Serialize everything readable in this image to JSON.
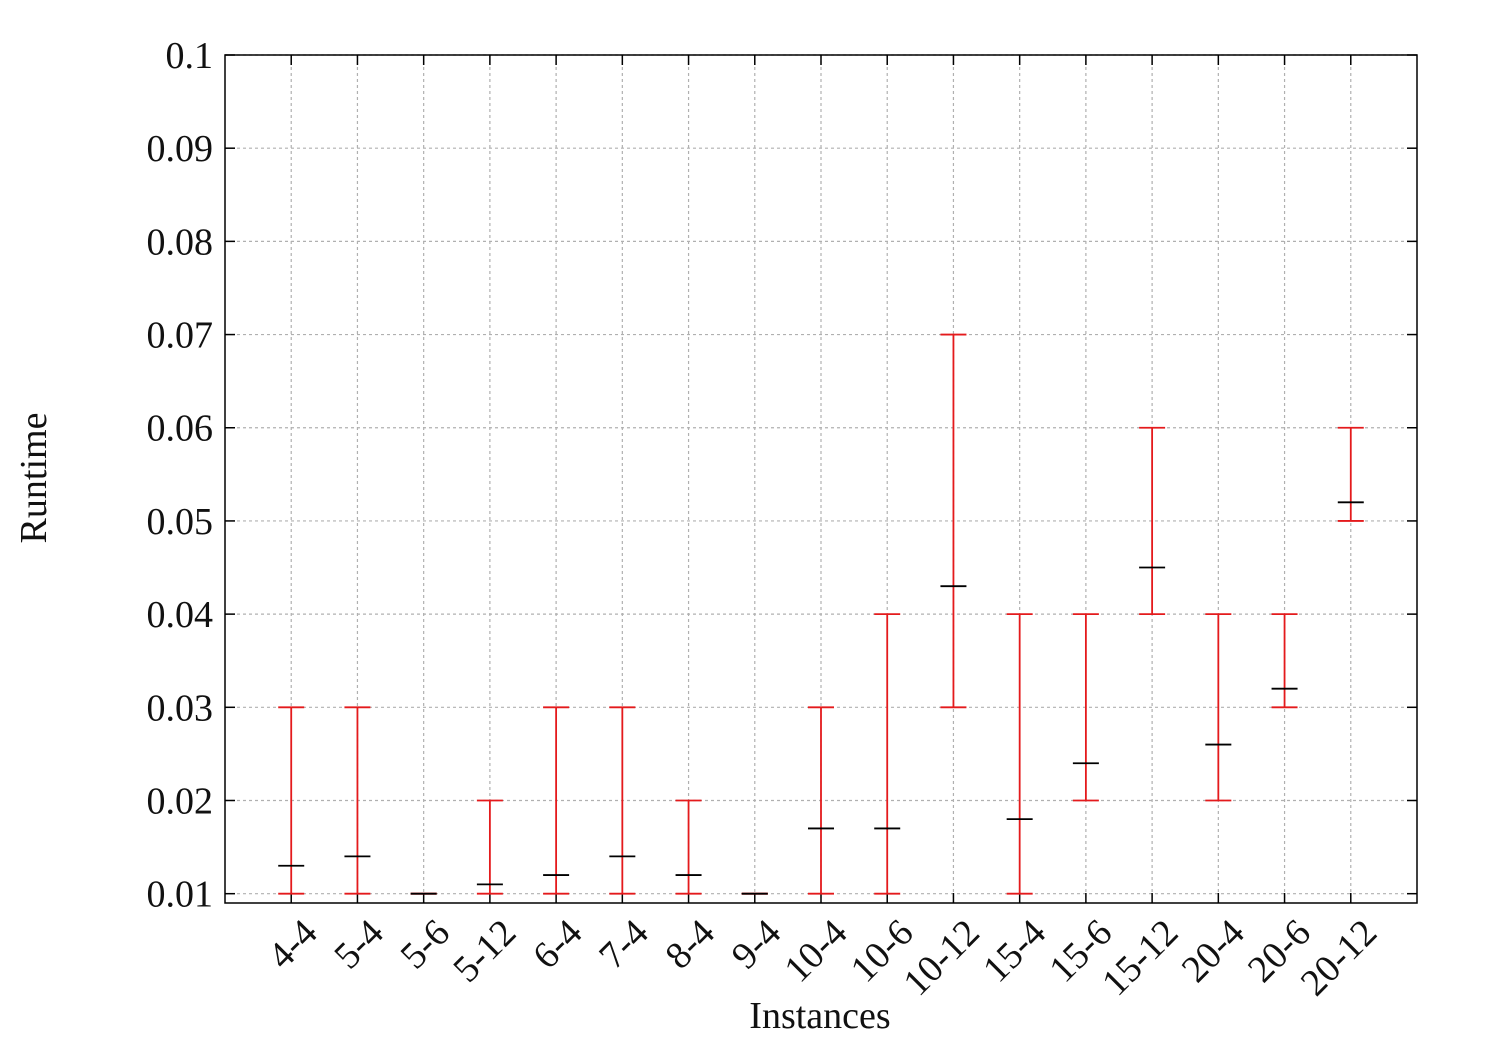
{
  "chart_data": {
    "type": "errorbar",
    "x_label": "Instances",
    "y_label": "Runtime",
    "categories": [
      "4-4",
      "5-4",
      "5-6",
      "5-12",
      "6-4",
      "7-4",
      "8-4",
      "9-4",
      "10-4",
      "10-6",
      "10-12",
      "15-4",
      "15-6",
      "15-12",
      "20-4",
      "20-6",
      "20-12"
    ],
    "values": [
      0.013,
      0.014,
      0.01,
      0.011,
      0.012,
      0.014,
      0.012,
      0.01,
      0.017,
      0.017,
      0.043,
      0.018,
      0.024,
      0.045,
      0.026,
      0.032,
      0.052
    ],
    "low": [
      0.01,
      0.01,
      0.01,
      0.01,
      0.01,
      0.01,
      0.01,
      0.01,
      0.01,
      0.01,
      0.03,
      0.01,
      0.02,
      0.04,
      0.02,
      0.03,
      0.05
    ],
    "high": [
      0.03,
      0.03,
      0.01,
      0.02,
      0.03,
      0.03,
      0.02,
      0.01,
      0.03,
      0.04,
      0.07,
      0.04,
      0.04,
      0.06,
      0.04,
      0.04,
      0.06
    ],
    "color": "#e41a1c",
    "mean_color": "#000000",
    "ylim": [
      0.009,
      0.1
    ],
    "yticks": [
      0.01,
      0.02,
      0.03,
      0.04,
      0.05,
      0.06,
      0.07,
      0.08,
      0.09,
      0.1
    ],
    "grid": true
  }
}
